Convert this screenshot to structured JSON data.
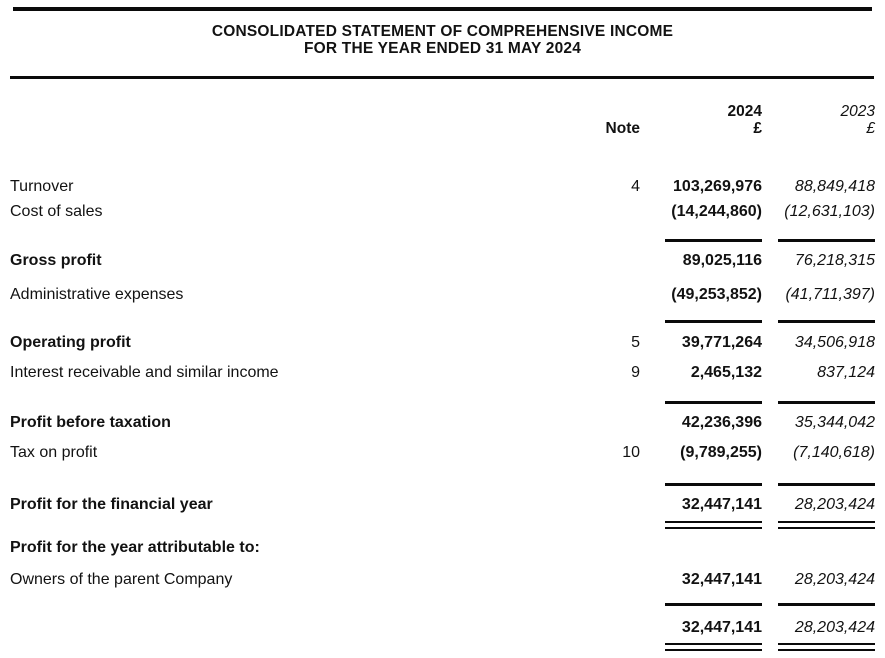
{
  "page": {
    "title_line1": "CONSOLIDATED STATEMENT OF COMPREHENSIVE INCOME",
    "title_line2": "FOR THE YEAR ENDED 31 MAY 2024"
  },
  "table": {
    "header": {
      "note": "Note",
      "year_2024": "2024",
      "year_2023": "2023",
      "currency_2024": "£",
      "currency_2023": "£"
    },
    "rows": [
      {
        "label": "Turnover",
        "note": "4",
        "v2024": "103,269,976",
        "v2023": "88,849,418"
      },
      {
        "label": "Cost of sales",
        "note": "",
        "v2024": "(14,244,860)",
        "v2023": "(12,631,103)"
      },
      {
        "label": "Gross profit",
        "note": "",
        "v2024": "89,025,116",
        "v2023": "76,218,315"
      },
      {
        "label": "Administrative expenses",
        "note": "",
        "v2024": "(49,253,852)",
        "v2023": "(41,711,397)"
      },
      {
        "label": "Operating profit",
        "note": "5",
        "v2024": "39,771,264",
        "v2023": "34,506,918"
      },
      {
        "label": "Interest receivable and similar income",
        "note": "9",
        "v2024": "2,465,132",
        "v2023": "837,124"
      },
      {
        "label": "Profit before taxation",
        "note": "",
        "v2024": "42,236,396",
        "v2023": "35,344,042"
      },
      {
        "label": "Tax on profit",
        "note": "10",
        "v2024": "(9,789,255)",
        "v2023": "(7,140,618)"
      },
      {
        "label": "Profit for the financial year",
        "note": "",
        "v2024": "32,447,141",
        "v2023": "28,203,424"
      },
      {
        "label": "Profit for the year attributable to:",
        "note": "",
        "v2024": "",
        "v2023": ""
      },
      {
        "label": "Owners of the parent Company",
        "note": "",
        "v2024": "32,447,141",
        "v2023": "28,203,424"
      },
      {
        "label": "",
        "note": "",
        "v2024": "32,447,141",
        "v2023": "28,203,424"
      }
    ]
  },
  "colors": {
    "text": "#121212",
    "rule": "#0a0a0a",
    "background": "#ffffff"
  }
}
